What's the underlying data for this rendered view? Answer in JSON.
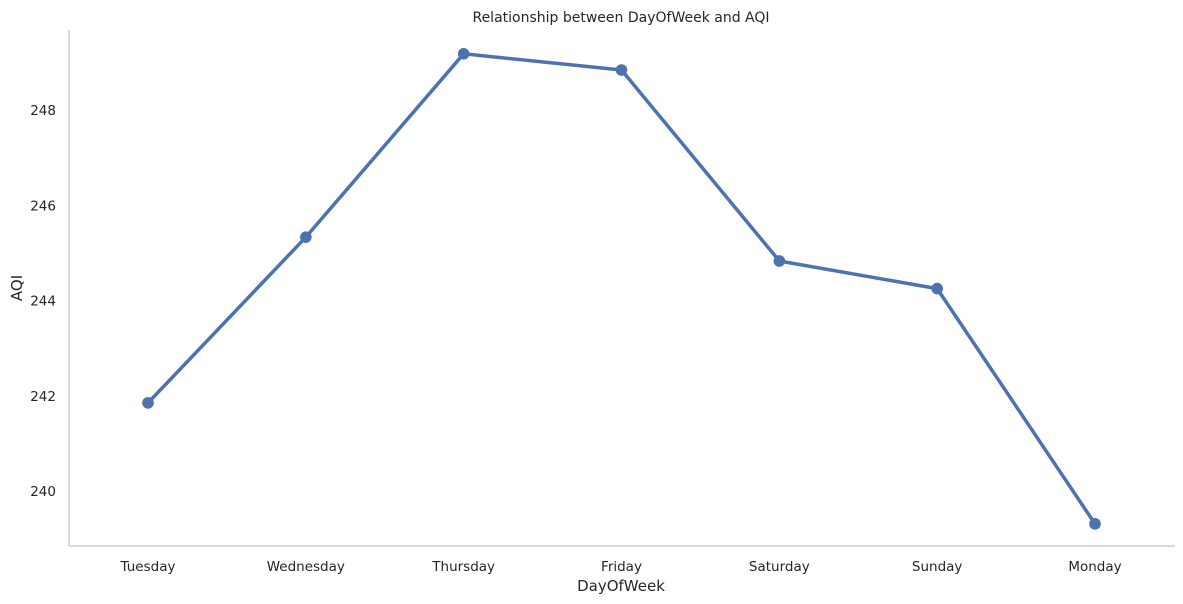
{
  "chart_data": {
    "type": "line",
    "title": "Relationship between DayOfWeek and AQI",
    "xlabel": "DayOfWeek",
    "ylabel": "AQI",
    "categories": [
      "Tuesday",
      "Wednesday",
      "Thursday",
      "Friday",
      "Saturday",
      "Sunday",
      "Monday"
    ],
    "series": [
      {
        "values": [
          241.85,
          245.33,
          249.18,
          248.84,
          244.83,
          244.25,
          239.31
        ]
      }
    ],
    "yticks": [
      240,
      242,
      244,
      246,
      248
    ],
    "ylim": [
      239.0,
      249.6
    ],
    "grid": false,
    "legend": "none",
    "colors": {
      "line": "#4c72b0",
      "axis": "#cccccc",
      "text": "#262626"
    }
  }
}
